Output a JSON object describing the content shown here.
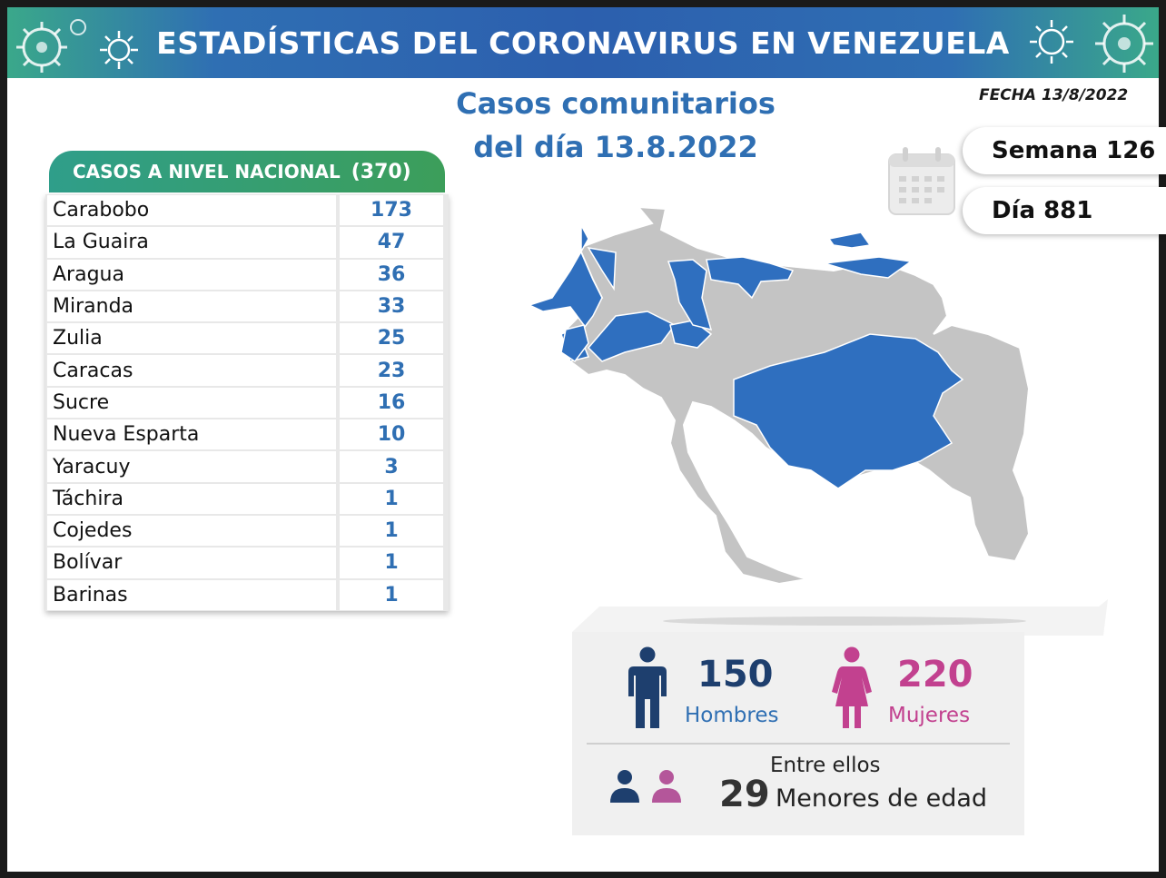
{
  "header": {
    "title": "ESTADÍSTICAS DEL CORONAVIRUS EN VENEZUELA",
    "subtitle_line1": "Casos comunitarios",
    "subtitle_line2": "del día 13.8.2022",
    "fecha": "FECHA 13/8/2022"
  },
  "summary": {
    "semana": "Semana 126",
    "dia": "Día 881"
  },
  "table": {
    "heading": "CASOS A NIVEL NACIONAL",
    "total": "(370)",
    "rows": [
      {
        "state": "Carabobo",
        "cases": "173"
      },
      {
        "state": "La Guaira",
        "cases": "47"
      },
      {
        "state": "Aragua",
        "cases": "36"
      },
      {
        "state": "Miranda",
        "cases": "33"
      },
      {
        "state": "Zulia",
        "cases": "25"
      },
      {
        "state": "Caracas",
        "cases": "23"
      },
      {
        "state": "Sucre",
        "cases": "16"
      },
      {
        "state": "Nueva Esparta",
        "cases": "10"
      },
      {
        "state": "Yaracuy",
        "cases": "3"
      },
      {
        "state": "Táchira",
        "cases": "1"
      },
      {
        "state": "Cojedes",
        "cases": "1"
      },
      {
        "state": "Bolívar",
        "cases": "1"
      },
      {
        "state": "Barinas",
        "cases": "1"
      }
    ]
  },
  "gender": {
    "men_count": "150",
    "men_label": "Hombres",
    "women_count": "220",
    "women_label": "Mujeres",
    "minors_intro": "Entre ellos",
    "minors_count": "29",
    "minors_label": "Menores de edad"
  },
  "colors": {
    "highlight_state": "#2f6fbf",
    "other_state": "#c4c4c4",
    "men": "#1e3f6e",
    "women": "#c2418f",
    "accent_blue": "#2f6fb3"
  },
  "icons": [
    "virus-icon",
    "calendar-icon",
    "man-icon",
    "woman-icon",
    "people-pair-icon"
  ]
}
